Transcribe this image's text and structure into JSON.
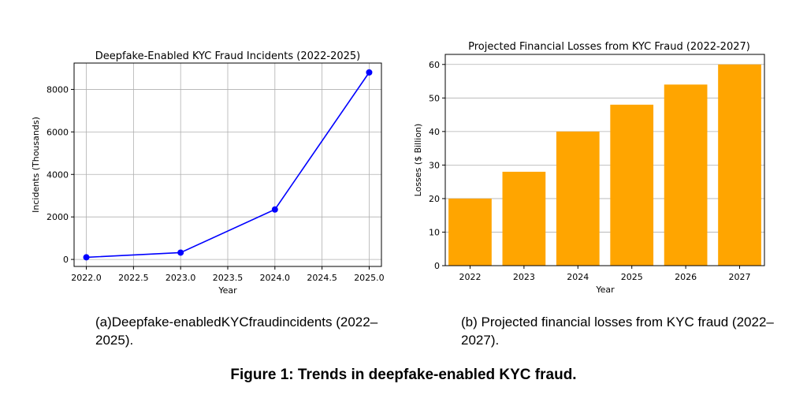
{
  "chart_data": [
    {
      "type": "line",
      "title": "Deepfake-Enabled KYC Fraud Incidents (2022-2025)",
      "xlabel": "Year",
      "ylabel": "Incidents (Thousands)",
      "x": [
        2022,
        2023,
        2024,
        2025
      ],
      "series": [
        {
          "values": [
            100,
            320,
            2350,
            8800
          ]
        }
      ],
      "xlim": [
        2021.87,
        2025.13
      ],
      "ylim": [
        -330,
        9240
      ],
      "xticks": [
        2022.0,
        2022.5,
        2023.0,
        2023.5,
        2024.0,
        2024.5,
        2025.0
      ],
      "xtick_labels": [
        "2022.0",
        "2022.5",
        "2023.0",
        "2023.5",
        "2024.0",
        "2024.5",
        "2025.0"
      ],
      "yticks": [
        0,
        2000,
        4000,
        6000,
        8000
      ],
      "ytick_labels": [
        "0",
        "2000",
        "4000",
        "6000",
        "8000"
      ],
      "grid": true,
      "color": "#0000ff"
    },
    {
      "type": "bar",
      "title": "Projected Financial Losses from KYC Fraud (2022-2027)",
      "xlabel": "Year",
      "ylabel": "Losses ($ Billion)",
      "categories": [
        "2022",
        "2023",
        "2024",
        "2025",
        "2026",
        "2027"
      ],
      "values": [
        20,
        28,
        40,
        48,
        54,
        60
      ],
      "ylim": [
        0,
        63
      ],
      "yticks": [
        0,
        10,
        20,
        30,
        40,
        50,
        60
      ],
      "ytick_labels": [
        "0",
        "10",
        "20",
        "30",
        "40",
        "50",
        "60"
      ],
      "grid": "y",
      "color": "#ffa500"
    }
  ],
  "captions": {
    "a": "(a)Deepfake-enabledKYCfraudincidents (2022–2025).",
    "b": "(b) Projected financial losses from KYC fraud (2022–2027).",
    "figure": "Figure 1: Trends in deepfake-enabled KYC fraud."
  }
}
